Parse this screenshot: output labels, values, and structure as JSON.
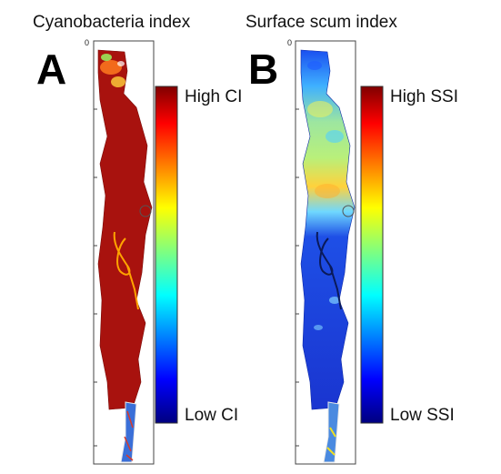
{
  "panel_a": {
    "title": "Cyanobacteria index",
    "letter": "A",
    "axis_start": "0",
    "colorbar": {
      "high_label": "High CI",
      "low_label": "Low CI"
    }
  },
  "panel_b": {
    "title": "Surface scum index",
    "letter": "B",
    "axis_start": "0",
    "colorbar": {
      "high_label": "High SSI",
      "low_label": "Low SSI"
    }
  },
  "colors": {
    "jet_high": "#800000",
    "jet_low": "#00007f",
    "ci_lake_fill": "#a8120e",
    "ssi_lake_fill": "#1531d8"
  }
}
